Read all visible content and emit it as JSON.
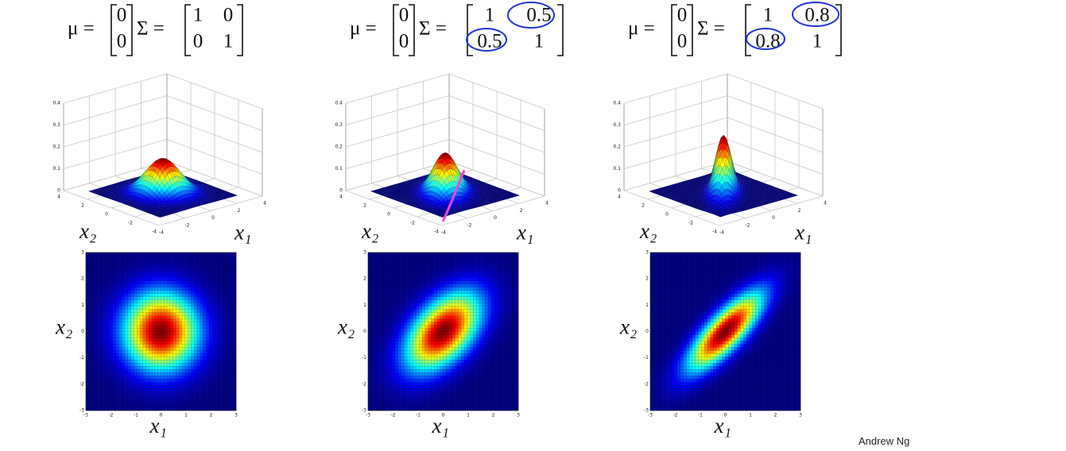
{
  "slide": {
    "panels": [
      {
        "mu": [
          0,
          0
        ],
        "sigma": [
          [
            1,
            0
          ],
          [
            0,
            1
          ]
        ]
      },
      {
        "mu": [
          0,
          0
        ],
        "sigma": [
          [
            1,
            0.5
          ],
          [
            0.5,
            1
          ]
        ]
      },
      {
        "mu": [
          0,
          0
        ],
        "sigma": [
          [
            1,
            0.8
          ],
          [
            0.8,
            1
          ]
        ]
      }
    ],
    "symbols": {
      "mu": "μ =",
      "sigma": "Σ ="
    },
    "axis_labels": {
      "x1": "x₁",
      "x2": "x₂"
    },
    "surface_axes": {
      "xlim": [
        -4,
        4
      ],
      "zlim": [
        0,
        0.4
      ],
      "zticks": [
        0,
        0.1,
        0.2,
        0.3,
        0.4
      ],
      "x1ticks": [
        -4,
        -2,
        0,
        2,
        4
      ],
      "x2ticks": [
        -4,
        -2,
        0,
        2,
        4
      ]
    },
    "heatmap_axes": {
      "lim": [
        -3,
        3
      ],
      "ticks": [
        -3,
        -2,
        -1,
        0,
        1,
        2,
        3
      ]
    },
    "author": "Andrew Ng"
  }
}
